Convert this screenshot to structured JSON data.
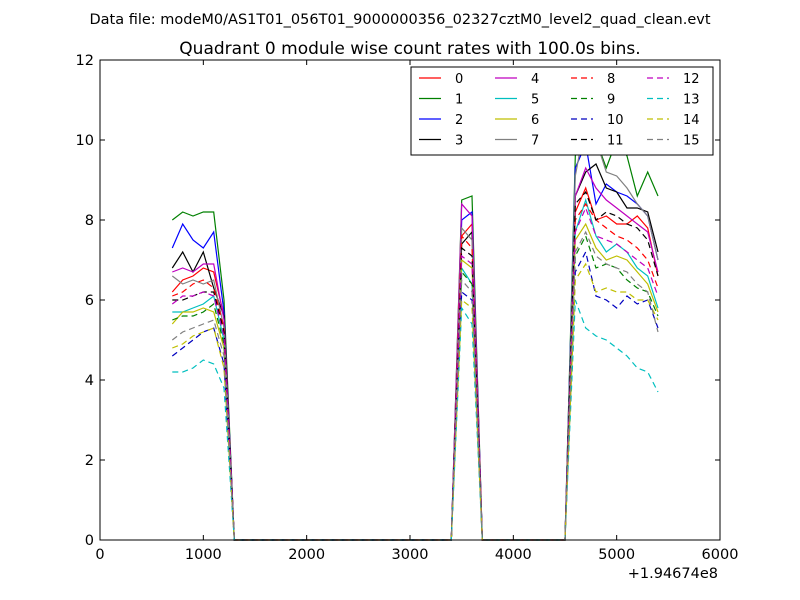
{
  "chart_data": {
    "type": "line",
    "supertitle": "Data file: modeM0/AS1T01_056T01_9000000356_02327cztM0_level2_quad_clean.evt",
    "title": "Quadrant 0 module wise count rates with 100.0s bins.",
    "xlabel": "",
    "ylabel": "",
    "xlim": [
      0,
      6000
    ],
    "ylim": [
      0,
      12
    ],
    "x_offset_label": "+1.94674e8",
    "xticks": [
      0,
      1000,
      2000,
      3000,
      4000,
      5000,
      6000
    ],
    "xtick_labels": [
      "0",
      "1000",
      "2000",
      "3000",
      "4000",
      "5000",
      "6000"
    ],
    "yticks": [
      0,
      2,
      4,
      6,
      8,
      10,
      12
    ],
    "ytick_labels": [
      "0",
      "2",
      "4",
      "6",
      "8",
      "10",
      "12"
    ],
    "grid": false,
    "legend": {
      "position": "top-right",
      "columns": 4
    },
    "x": [
      700,
      800,
      900,
      1000,
      1100,
      1200,
      1300,
      1400,
      1500,
      1600,
      1700,
      1800,
      1900,
      2000,
      2100,
      2200,
      2300,
      2400,
      2500,
      2600,
      2700,
      2800,
      2900,
      3000,
      3100,
      3200,
      3300,
      3400,
      3500,
      3600,
      3700,
      3800,
      3900,
      4000,
      4100,
      4200,
      4300,
      4400,
      4500,
      4600,
      4700,
      4800,
      4900,
      5000,
      5100,
      5200,
      5300,
      5400
    ],
    "series": [
      {
        "name": "0",
        "color": "#ff0000",
        "dash": "solid",
        "head": [
          6.2,
          6.5,
          6.6,
          6.8,
          6.7,
          5.6,
          0
        ],
        "mid": [
          7.6,
          7.9
        ],
        "tail": [
          8.2,
          8.8,
          8.0,
          8.1,
          7.9,
          7.9,
          8.1,
          7.8,
          6.6
        ]
      },
      {
        "name": "1",
        "color": "#008000",
        "dash": "solid",
        "head": [
          8.0,
          8.2,
          8.1,
          8.2,
          8.2,
          6.0,
          0
        ],
        "mid": [
          8.5,
          8.6
        ],
        "tail": [
          9.6,
          10.4,
          10.0,
          9.3,
          10.0,
          9.6,
          8.6,
          9.2,
          8.6
        ]
      },
      {
        "name": "2",
        "color": "#0000ff",
        "dash": "solid",
        "head": [
          7.3,
          7.9,
          7.5,
          7.3,
          7.7,
          5.7,
          0
        ],
        "mid": [
          8.0,
          8.2
        ],
        "tail": [
          9.3,
          9.9,
          8.4,
          8.9,
          8.7,
          8.6,
          8.4,
          8.1,
          7.0
        ]
      },
      {
        "name": "3",
        "color": "#000000",
        "dash": "solid",
        "head": [
          6.8,
          7.2,
          6.7,
          7.2,
          6.3,
          5.6,
          0
        ],
        "mid": [
          7.4,
          7.7
        ],
        "tail": [
          8.6,
          9.2,
          9.4,
          8.8,
          8.7,
          8.3,
          8.3,
          8.2,
          7.2
        ]
      },
      {
        "name": "4",
        "color": "#bf00bf",
        "dash": "solid",
        "head": [
          6.7,
          6.8,
          6.7,
          6.9,
          6.9,
          5.5,
          0
        ],
        "mid": [
          8.4,
          8.1
        ],
        "tail": [
          8.6,
          9.3,
          8.8,
          8.5,
          8.3,
          8.1,
          7.9,
          7.7,
          6.7
        ]
      },
      {
        "name": "5",
        "color": "#00bfbf",
        "dash": "solid",
        "head": [
          5.7,
          5.7,
          5.8,
          5.9,
          6.1,
          5.0,
          0
        ],
        "mid": [
          6.8,
          6.4
        ],
        "tail": [
          7.7,
          8.5,
          7.6,
          7.2,
          7.4,
          7.2,
          6.8,
          6.6,
          5.8
        ]
      },
      {
        "name": "6",
        "color": "#bfbf00",
        "dash": "solid",
        "head": [
          5.4,
          5.7,
          5.7,
          5.8,
          5.7,
          4.8,
          0
        ],
        "mid": [
          7.0,
          6.8
        ],
        "tail": [
          7.5,
          7.9,
          7.3,
          7.0,
          7.1,
          7.0,
          6.7,
          6.4,
          5.7
        ]
      },
      {
        "name": "7",
        "color": "#808080",
        "dash": "solid",
        "head": [
          6.6,
          6.4,
          6.5,
          6.4,
          6.5,
          5.3,
          0
        ],
        "mid": [
          7.8,
          7.5
        ],
        "tail": [
          9.1,
          10.5,
          10.0,
          9.2,
          9.1,
          8.8,
          8.4,
          8.1,
          7.0
        ]
      },
      {
        "name": "8",
        "color": "#ff0000",
        "dash": "dashed",
        "head": [
          6.1,
          6.2,
          6.4,
          6.5,
          6.3,
          5.3,
          0
        ],
        "mid": [
          7.6,
          7.3
        ],
        "tail": [
          8.0,
          8.4,
          8.0,
          7.8,
          7.6,
          7.5,
          7.3,
          7.0,
          6.3
        ]
      },
      {
        "name": "9",
        "color": "#008000",
        "dash": "dashed",
        "head": [
          5.5,
          5.6,
          5.6,
          5.7,
          5.9,
          4.9,
          0
        ],
        "mid": [
          6.7,
          6.4
        ],
        "tail": [
          7.1,
          7.6,
          6.8,
          6.9,
          6.8,
          6.5,
          6.3,
          6.2,
          5.6
        ]
      },
      {
        "name": "10",
        "color": "#0000bf",
        "dash": "dashed",
        "head": [
          4.6,
          4.8,
          5.0,
          5.2,
          5.3,
          4.4,
          0
        ],
        "mid": [
          6.2,
          6.0
        ],
        "tail": [
          6.7,
          7.2,
          6.1,
          6.0,
          5.8,
          6.1,
          5.9,
          6.0,
          5.3
        ]
      },
      {
        "name": "11",
        "color": "#000000",
        "dash": "dashed",
        "head": [
          6.0,
          6.0,
          6.1,
          6.2,
          6.2,
          5.2,
          0
        ],
        "mid": [
          7.3,
          7.1
        ],
        "tail": [
          8.4,
          8.7,
          8.0,
          8.2,
          8.1,
          7.9,
          7.8,
          7.5,
          6.6
        ]
      },
      {
        "name": "12",
        "color": "#bf00bf",
        "dash": "dashed",
        "head": [
          5.9,
          6.1,
          6.1,
          6.2,
          6.1,
          5.1,
          0
        ],
        "mid": [
          7.1,
          6.9
        ],
        "tail": [
          7.7,
          8.3,
          7.6,
          7.5,
          7.4,
          7.2,
          7.0,
          6.8,
          6.1
        ]
      },
      {
        "name": "13",
        "color": "#00bfbf",
        "dash": "dashed",
        "head": [
          4.2,
          4.2,
          4.3,
          4.5,
          4.4,
          3.8,
          0
        ],
        "mid": [
          5.8,
          5.4
        ],
        "tail": [
          6.0,
          5.3,
          5.1,
          5.0,
          4.8,
          4.6,
          4.3,
          4.2,
          3.7
        ]
      },
      {
        "name": "14",
        "color": "#bfbf00",
        "dash": "dashed",
        "head": [
          4.8,
          4.9,
          5.1,
          5.2,
          5.3,
          4.3,
          0
        ],
        "mid": [
          6.0,
          5.8
        ],
        "tail": [
          6.5,
          6.9,
          6.2,
          6.3,
          6.2,
          6.2,
          6.0,
          6.0,
          5.5
        ]
      },
      {
        "name": "15",
        "color": "#808080",
        "dash": "dashed",
        "head": [
          5.0,
          5.2,
          5.3,
          5.4,
          5.5,
          4.6,
          0
        ],
        "mid": [
          6.5,
          6.2
        ],
        "tail": [
          7.2,
          7.7,
          7.1,
          6.9,
          6.8,
          6.7,
          6.4,
          6.2,
          5.2
        ]
      }
    ]
  }
}
